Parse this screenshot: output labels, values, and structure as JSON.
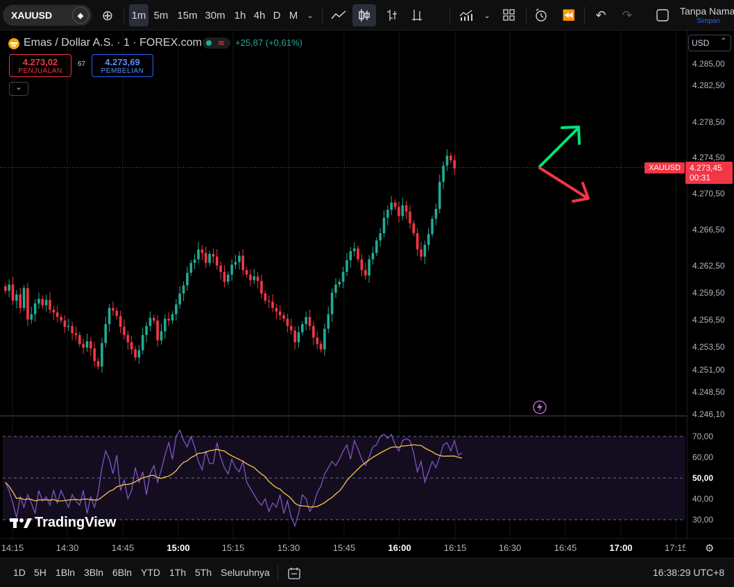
{
  "toolbar": {
    "symbol": "XAUUSD",
    "intervals": [
      "1m",
      "5m",
      "15m",
      "30m",
      "1h",
      "4h",
      "D",
      "M"
    ],
    "active_interval": "1m",
    "layout_name": "Tanpa Nama",
    "layout_save": "Simpan",
    "icons": [
      "plus-icon",
      "line-chart-icon",
      "candles-icon",
      "bars-icon",
      "indicators-icon",
      "layouts-icon",
      "alert-icon",
      "replay-icon",
      "undo-icon",
      "redo-icon",
      "fullscreen-icon"
    ]
  },
  "legend": {
    "title": "Emas / Dollar A.S. · 1 · FOREX.com",
    "change": "+25,87 (+0,61%)",
    "sell_price": "4.273,02",
    "sell_label": "PENJUALAN",
    "spread": "67",
    "buy_price": "4.273,69",
    "buy_label": "PEMBELIAN"
  },
  "currency_select": "USD",
  "last_price": {
    "symbol": "XAUUSD",
    "price": "4.273,45",
    "countdown": "00:31"
  },
  "price_axis": [
    "4.285,00",
    "4.282,50",
    "4.278,50",
    "4.274,50",
    "4.270,50",
    "4.266,50",
    "4.262,50",
    "4.259,50",
    "4.256,50",
    "4.253,50",
    "4.251,00",
    "4.248,50",
    "4.246,10"
  ],
  "rsi_axis": [
    "70,00",
    "60,00",
    "50,00",
    "40,00",
    "30,00"
  ],
  "time_axis": [
    "14:15",
    "14:30",
    "14:45",
    "15:00",
    "15:15",
    "15:30",
    "15:45",
    "16:00",
    "16:15",
    "16:30",
    "16:45",
    "17:00",
    "17:15"
  ],
  "watermark": "TradingView",
  "ranges": [
    "1D",
    "5H",
    "1Bln",
    "3Bln",
    "6Bln",
    "YTD",
    "1Th",
    "5Th",
    "Seluruhnya"
  ],
  "clock": "16:38:29 UTC+8",
  "colors": {
    "up": "#22ab94",
    "down": "#f23645",
    "rsi": "#7e57c2",
    "rsi_ma": "#f7c948",
    "arrow_up": "#00e676",
    "arrow_down": "#f23645"
  }
}
